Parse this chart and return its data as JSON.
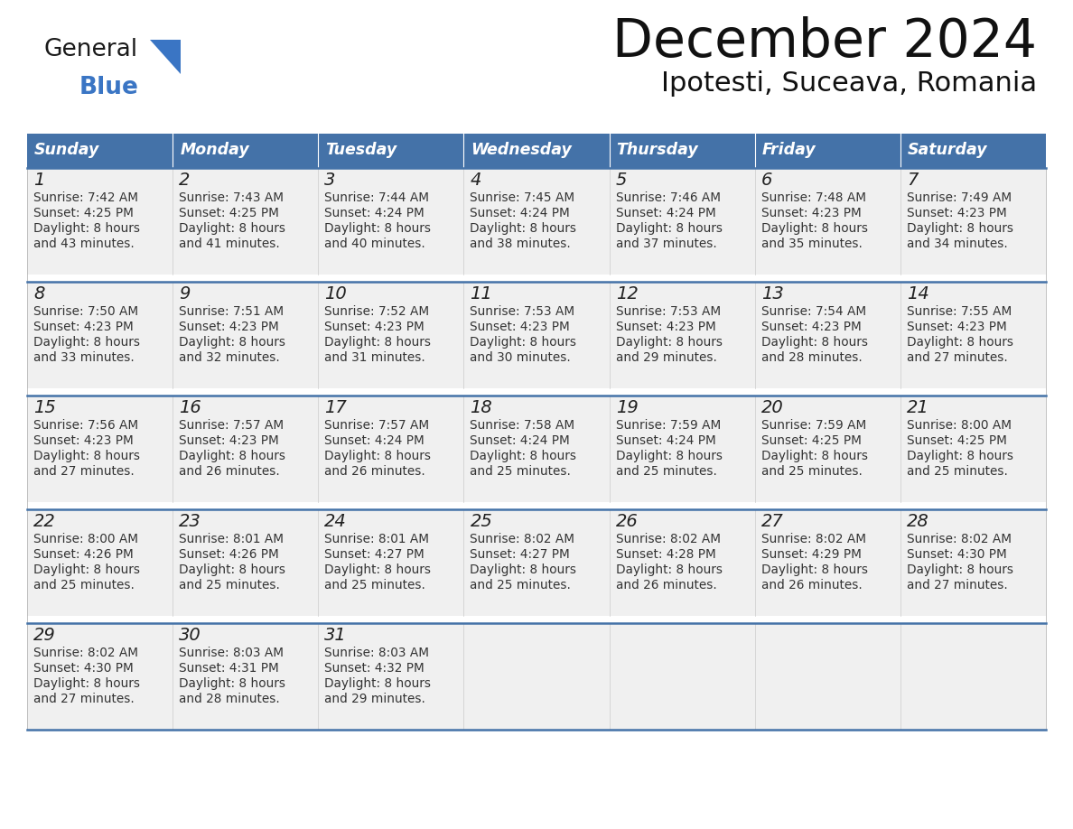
{
  "title": "December 2024",
  "subtitle": "Ipotesti, Suceava, Romania",
  "header_color": "#4472a8",
  "header_text_color": "#FFFFFF",
  "days_of_week": [
    "Sunday",
    "Monday",
    "Tuesday",
    "Wednesday",
    "Thursday",
    "Friday",
    "Saturday"
  ],
  "weeks": [
    [
      {
        "day": 1,
        "sunrise": "7:42 AM",
        "sunset": "4:25 PM",
        "daylight_hours": 8,
        "daylight_minutes": 43
      },
      {
        "day": 2,
        "sunrise": "7:43 AM",
        "sunset": "4:25 PM",
        "daylight_hours": 8,
        "daylight_minutes": 41
      },
      {
        "day": 3,
        "sunrise": "7:44 AM",
        "sunset": "4:24 PM",
        "daylight_hours": 8,
        "daylight_minutes": 40
      },
      {
        "day": 4,
        "sunrise": "7:45 AM",
        "sunset": "4:24 PM",
        "daylight_hours": 8,
        "daylight_minutes": 38
      },
      {
        "day": 5,
        "sunrise": "7:46 AM",
        "sunset": "4:24 PM",
        "daylight_hours": 8,
        "daylight_minutes": 37
      },
      {
        "day": 6,
        "sunrise": "7:48 AM",
        "sunset": "4:23 PM",
        "daylight_hours": 8,
        "daylight_minutes": 35
      },
      {
        "day": 7,
        "sunrise": "7:49 AM",
        "sunset": "4:23 PM",
        "daylight_hours": 8,
        "daylight_minutes": 34
      }
    ],
    [
      {
        "day": 8,
        "sunrise": "7:50 AM",
        "sunset": "4:23 PM",
        "daylight_hours": 8,
        "daylight_minutes": 33
      },
      {
        "day": 9,
        "sunrise": "7:51 AM",
        "sunset": "4:23 PM",
        "daylight_hours": 8,
        "daylight_minutes": 32
      },
      {
        "day": 10,
        "sunrise": "7:52 AM",
        "sunset": "4:23 PM",
        "daylight_hours": 8,
        "daylight_minutes": 31
      },
      {
        "day": 11,
        "sunrise": "7:53 AM",
        "sunset": "4:23 PM",
        "daylight_hours": 8,
        "daylight_minutes": 30
      },
      {
        "day": 12,
        "sunrise": "7:53 AM",
        "sunset": "4:23 PM",
        "daylight_hours": 8,
        "daylight_minutes": 29
      },
      {
        "day": 13,
        "sunrise": "7:54 AM",
        "sunset": "4:23 PM",
        "daylight_hours": 8,
        "daylight_minutes": 28
      },
      {
        "day": 14,
        "sunrise": "7:55 AM",
        "sunset": "4:23 PM",
        "daylight_hours": 8,
        "daylight_minutes": 27
      }
    ],
    [
      {
        "day": 15,
        "sunrise": "7:56 AM",
        "sunset": "4:23 PM",
        "daylight_hours": 8,
        "daylight_minutes": 27
      },
      {
        "day": 16,
        "sunrise": "7:57 AM",
        "sunset": "4:23 PM",
        "daylight_hours": 8,
        "daylight_minutes": 26
      },
      {
        "day": 17,
        "sunrise": "7:57 AM",
        "sunset": "4:24 PM",
        "daylight_hours": 8,
        "daylight_minutes": 26
      },
      {
        "day": 18,
        "sunrise": "7:58 AM",
        "sunset": "4:24 PM",
        "daylight_hours": 8,
        "daylight_minutes": 25
      },
      {
        "day": 19,
        "sunrise": "7:59 AM",
        "sunset": "4:24 PM",
        "daylight_hours": 8,
        "daylight_minutes": 25
      },
      {
        "day": 20,
        "sunrise": "7:59 AM",
        "sunset": "4:25 PM",
        "daylight_hours": 8,
        "daylight_minutes": 25
      },
      {
        "day": 21,
        "sunrise": "8:00 AM",
        "sunset": "4:25 PM",
        "daylight_hours": 8,
        "daylight_minutes": 25
      }
    ],
    [
      {
        "day": 22,
        "sunrise": "8:00 AM",
        "sunset": "4:26 PM",
        "daylight_hours": 8,
        "daylight_minutes": 25
      },
      {
        "day": 23,
        "sunrise": "8:01 AM",
        "sunset": "4:26 PM",
        "daylight_hours": 8,
        "daylight_minutes": 25
      },
      {
        "day": 24,
        "sunrise": "8:01 AM",
        "sunset": "4:27 PM",
        "daylight_hours": 8,
        "daylight_minutes": 25
      },
      {
        "day": 25,
        "sunrise": "8:02 AM",
        "sunset": "4:27 PM",
        "daylight_hours": 8,
        "daylight_minutes": 25
      },
      {
        "day": 26,
        "sunrise": "8:02 AM",
        "sunset": "4:28 PM",
        "daylight_hours": 8,
        "daylight_minutes": 26
      },
      {
        "day": 27,
        "sunrise": "8:02 AM",
        "sunset": "4:29 PM",
        "daylight_hours": 8,
        "daylight_minutes": 26
      },
      {
        "day": 28,
        "sunrise": "8:02 AM",
        "sunset": "4:30 PM",
        "daylight_hours": 8,
        "daylight_minutes": 27
      }
    ],
    [
      {
        "day": 29,
        "sunrise": "8:02 AM",
        "sunset": "4:30 PM",
        "daylight_hours": 8,
        "daylight_minutes": 27
      },
      {
        "day": 30,
        "sunrise": "8:03 AM",
        "sunset": "4:31 PM",
        "daylight_hours": 8,
        "daylight_minutes": 28
      },
      {
        "day": 31,
        "sunrise": "8:03 AM",
        "sunset": "4:32 PM",
        "daylight_hours": 8,
        "daylight_minutes": 29
      },
      null,
      null,
      null,
      null
    ]
  ],
  "logo_general_color": "#1a1a1a",
  "logo_blue_color": "#3a75c4",
  "background_color": "#FFFFFF",
  "cell_bg_color": "#f0f0f0",
  "border_color": "#4472a8",
  "cell_text_color": "#333333",
  "gap_color": "#FFFFFF"
}
